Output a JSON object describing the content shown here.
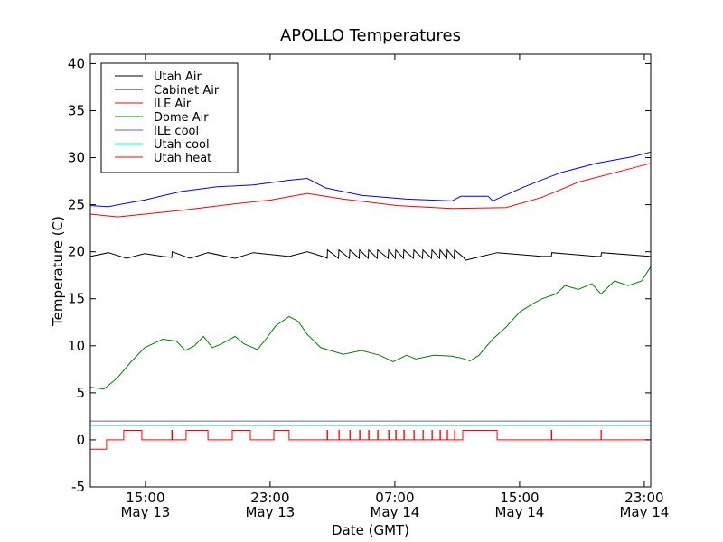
{
  "chart_data": {
    "type": "line",
    "title": "APOLLO Temperatures",
    "xlabel": "Date (GMT)",
    "ylabel": "Temperature (C)",
    "x_units": "hours since May 13 00:00 GMT",
    "xlim": [
      11.47,
      47.41
    ],
    "ylim": [
      -5,
      41
    ],
    "yticks": [
      -5,
      0,
      5,
      10,
      15,
      20,
      25,
      30,
      35,
      40
    ],
    "xticks": [
      {
        "x": 15,
        "time": "15:00",
        "date": "May 13"
      },
      {
        "x": 23,
        "time": "23:00",
        "date": "May 13"
      },
      {
        "x": 31,
        "time": "07:00",
        "date": "May 14"
      },
      {
        "x": 39,
        "time": "15:00",
        "date": "May 14"
      },
      {
        "x": 47,
        "time": "23:00",
        "date": "May 14"
      }
    ],
    "legend_placement": "top-left",
    "series": [
      {
        "name": "Utah Air",
        "color": "#000000",
        "points": [
          [
            11.47,
            19.5
          ],
          [
            12.63,
            19.9
          ],
          [
            13.79,
            19.3
          ],
          [
            14.95,
            19.8
          ],
          [
            16.11,
            19.5
          ],
          [
            16.69,
            19.4
          ],
          [
            16.72,
            20.0
          ],
          [
            17.85,
            19.3
          ],
          [
            19.01,
            19.9
          ],
          [
            20.75,
            19.3
          ],
          [
            21.91,
            19.9
          ],
          [
            24.22,
            19.5
          ],
          [
            25.38,
            20.0
          ],
          [
            26.54,
            19.4
          ],
          [
            26.66,
            19.3
          ],
          [
            26.68,
            20.2
          ],
          [
            27.38,
            19.3
          ],
          [
            27.41,
            20.2
          ],
          [
            28.08,
            19.3
          ],
          [
            28.11,
            20.2
          ],
          [
            28.71,
            19.3
          ],
          [
            28.74,
            20.2
          ],
          [
            29.29,
            19.3
          ],
          [
            29.32,
            20.2
          ],
          [
            29.87,
            19.3
          ],
          [
            29.9,
            20.2
          ],
          [
            30.57,
            19.3
          ],
          [
            30.6,
            20.2
          ],
          [
            31.03,
            19.3
          ],
          [
            31.06,
            20.2
          ],
          [
            31.55,
            19.3
          ],
          [
            31.58,
            20.2
          ],
          [
            32.19,
            19.3
          ],
          [
            32.22,
            20.2
          ],
          [
            32.77,
            19.3
          ],
          [
            32.8,
            20.2
          ],
          [
            33.35,
            19.3
          ],
          [
            33.38,
            20.2
          ],
          [
            33.87,
            19.3
          ],
          [
            33.9,
            20.2
          ],
          [
            34.33,
            19.3
          ],
          [
            34.36,
            20.2
          ],
          [
            34.8,
            19.3
          ],
          [
            34.83,
            20.2
          ],
          [
            35.4,
            19.4
          ],
          [
            35.53,
            19.1
          ],
          [
            37.56,
            19.9
          ],
          [
            40.46,
            19.5
          ],
          [
            41.04,
            19.5
          ],
          [
            41.07,
            19.9
          ],
          [
            43.93,
            19.5
          ],
          [
            44.22,
            19.5
          ],
          [
            44.25,
            19.9
          ],
          [
            47.41,
            19.5
          ]
        ]
      },
      {
        "name": "Cabinet Air",
        "color": "#0000ff",
        "points": [
          [
            11.47,
            24.9
          ],
          [
            12.63,
            24.8
          ],
          [
            14.95,
            25.5
          ],
          [
            17.27,
            26.4
          ],
          [
            19.59,
            26.9
          ],
          [
            21.91,
            27.1
          ],
          [
            24.22,
            27.6
          ],
          [
            25.38,
            27.8
          ],
          [
            26.54,
            26.8
          ],
          [
            28.86,
            26.0
          ],
          [
            31.76,
            25.6
          ],
          [
            34.66,
            25.4
          ],
          [
            35.24,
            25.9
          ],
          [
            36.98,
            25.9
          ],
          [
            37.27,
            25.4
          ],
          [
            39.3,
            26.9
          ],
          [
            41.62,
            28.4
          ],
          [
            43.93,
            29.4
          ],
          [
            46.25,
            30.1
          ],
          [
            47.41,
            30.6
          ]
        ]
      },
      {
        "name": "ILE Air",
        "color": "#ff0000",
        "points": [
          [
            11.47,
            24.0
          ],
          [
            13.21,
            23.7
          ],
          [
            17.27,
            24.4
          ],
          [
            20.75,
            25.1
          ],
          [
            23.06,
            25.5
          ],
          [
            25.38,
            26.2
          ],
          [
            27.7,
            25.6
          ],
          [
            31.18,
            24.9
          ],
          [
            34.66,
            24.6
          ],
          [
            38.14,
            24.7
          ],
          [
            40.46,
            25.8
          ],
          [
            42.78,
            27.4
          ],
          [
            45.09,
            28.4
          ],
          [
            47.41,
            29.4
          ]
        ]
      },
      {
        "name": "Dome Air",
        "color": "#008000",
        "points": [
          [
            11.47,
            5.6
          ],
          [
            12.34,
            5.4
          ],
          [
            13.21,
            6.6
          ],
          [
            14.08,
            8.3
          ],
          [
            14.95,
            9.8
          ],
          [
            16.11,
            10.7
          ],
          [
            16.98,
            10.5
          ],
          [
            17.56,
            9.5
          ],
          [
            18.14,
            10.0
          ],
          [
            18.72,
            11.0
          ],
          [
            19.3,
            9.8
          ],
          [
            19.88,
            10.2
          ],
          [
            20.75,
            11.0
          ],
          [
            21.33,
            10.2
          ],
          [
            22.19,
            9.6
          ],
          [
            22.77,
            10.8
          ],
          [
            23.35,
            12.1
          ],
          [
            24.22,
            13.1
          ],
          [
            24.8,
            12.6
          ],
          [
            25.38,
            11.2
          ],
          [
            26.25,
            9.8
          ],
          [
            27.7,
            9.1
          ],
          [
            28.86,
            9.5
          ],
          [
            30.02,
            9.0
          ],
          [
            30.89,
            8.3
          ],
          [
            31.76,
            9.0
          ],
          [
            32.34,
            8.6
          ],
          [
            33.5,
            9.0
          ],
          [
            34.66,
            8.9
          ],
          [
            35.24,
            8.7
          ],
          [
            35.82,
            8.4
          ],
          [
            36.4,
            9.0
          ],
          [
            37.27,
            10.7
          ],
          [
            38.14,
            12.0
          ],
          [
            39.01,
            13.6
          ],
          [
            39.88,
            14.5
          ],
          [
            40.46,
            15.0
          ],
          [
            41.33,
            15.5
          ],
          [
            41.91,
            16.4
          ],
          [
            42.78,
            16.0
          ],
          [
            43.64,
            16.6
          ],
          [
            44.22,
            15.5
          ],
          [
            45.09,
            16.9
          ],
          [
            45.96,
            16.4
          ],
          [
            46.83,
            16.9
          ],
          [
            47.41,
            18.4
          ]
        ]
      },
      {
        "name": "ILE cool",
        "color": "#6666aa",
        "points": [
          [
            11.47,
            2.0
          ],
          [
            47.41,
            2.0
          ]
        ]
      },
      {
        "name": "Utah cool",
        "color": "#00ffff",
        "points": [
          [
            11.47,
            1.5
          ],
          [
            47.41,
            1.5
          ]
        ]
      },
      {
        "name": "Utah heat",
        "color": "#ff0000",
        "points": [
          [
            11.47,
            -1
          ],
          [
            12.51,
            -1
          ],
          [
            12.51,
            0
          ],
          [
            13.61,
            0
          ],
          [
            13.61,
            1
          ],
          [
            14.77,
            1
          ],
          [
            14.77,
            0
          ],
          [
            16.69,
            0
          ],
          [
            16.69,
            1
          ],
          [
            16.72,
            1
          ],
          [
            16.72,
            0
          ],
          [
            17.61,
            0
          ],
          [
            17.61,
            1
          ],
          [
            19.01,
            1
          ],
          [
            19.01,
            0
          ],
          [
            20.57,
            0
          ],
          [
            20.57,
            1
          ],
          [
            21.73,
            1
          ],
          [
            21.73,
            0
          ],
          [
            23.24,
            0
          ],
          [
            23.24,
            1
          ],
          [
            24.22,
            1
          ],
          [
            24.22,
            0
          ],
          [
            35.35,
            0
          ],
          [
            35.35,
            1
          ],
          [
            37.56,
            1
          ],
          [
            37.56,
            0
          ],
          [
            47.41,
            0
          ]
        ],
        "spikes": [
          26.66,
          27.41,
          28.11,
          28.74,
          29.32,
          29.9,
          30.6,
          31.06,
          31.58,
          32.22,
          32.8,
          33.38,
          33.9,
          34.36,
          34.83,
          41.04,
          44.22
        ]
      }
    ]
  }
}
